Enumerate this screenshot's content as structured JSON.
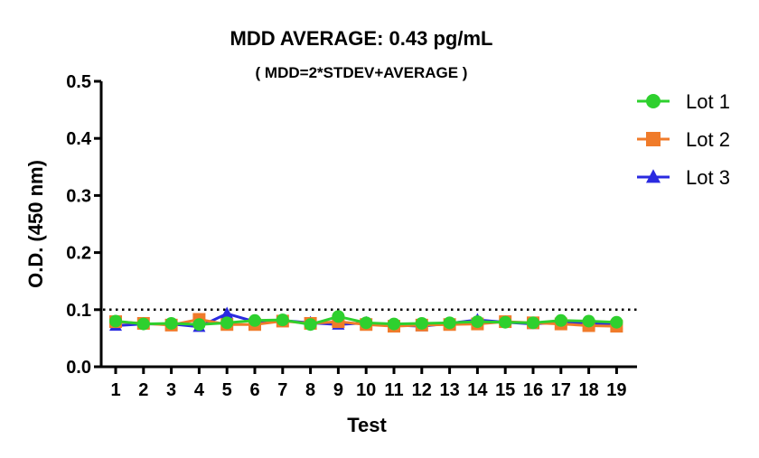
{
  "chart_data": {
    "type": "line",
    "title": "MDD AVERAGE:  0.43 pg/mL",
    "subtitle": "( MDD=2*STDEV+AVERAGE )",
    "xlabel": "Test",
    "ylabel": "O.D. (450 nm)",
    "x": [
      1,
      2,
      3,
      4,
      5,
      6,
      7,
      8,
      9,
      10,
      11,
      12,
      13,
      14,
      15,
      16,
      17,
      18,
      19
    ],
    "x_tick_labels": [
      "1",
      "2",
      "3",
      "4",
      "5",
      "6",
      "7",
      "8",
      "9",
      "10",
      "11",
      "12",
      "13",
      "14",
      "15",
      "16",
      "17",
      "18",
      "19"
    ],
    "ylim": [
      0,
      0.5
    ],
    "y_ticks": [
      0.0,
      0.1,
      0.2,
      0.3,
      0.4,
      0.5
    ],
    "y_tick_labels": [
      "0.0",
      "0.1",
      "0.2",
      "0.3",
      "0.4",
      "0.5"
    ],
    "reference_line": {
      "y": 0.1,
      "style": "dotted",
      "color": "#000000"
    },
    "grid": false,
    "legend_position": "top-right",
    "series": [
      {
        "name": "Lot 1",
        "color": "#2ed02e",
        "marker": "circle",
        "values": [
          0.08,
          0.075,
          0.076,
          0.074,
          0.077,
          0.081,
          0.082,
          0.074,
          0.088,
          0.077,
          0.075,
          0.076,
          0.077,
          0.079,
          0.078,
          0.077,
          0.081,
          0.08,
          0.078
        ]
      },
      {
        "name": "Lot 2",
        "color": "#f07b2a",
        "marker": "square",
        "values": [
          0.079,
          0.076,
          0.073,
          0.083,
          0.074,
          0.074,
          0.08,
          0.076,
          0.079,
          0.074,
          0.071,
          0.073,
          0.074,
          0.075,
          0.079,
          0.077,
          0.075,
          0.072,
          0.071
        ]
      },
      {
        "name": "Lot 3",
        "color": "#2a2ae0",
        "marker": "triangle",
        "values": [
          0.072,
          0.075,
          0.075,
          0.07,
          0.093,
          0.079,
          0.081,
          0.077,
          0.074,
          0.077,
          0.073,
          0.071,
          0.076,
          0.082,
          0.078,
          0.075,
          0.078,
          0.076,
          0.075
        ]
      }
    ]
  }
}
